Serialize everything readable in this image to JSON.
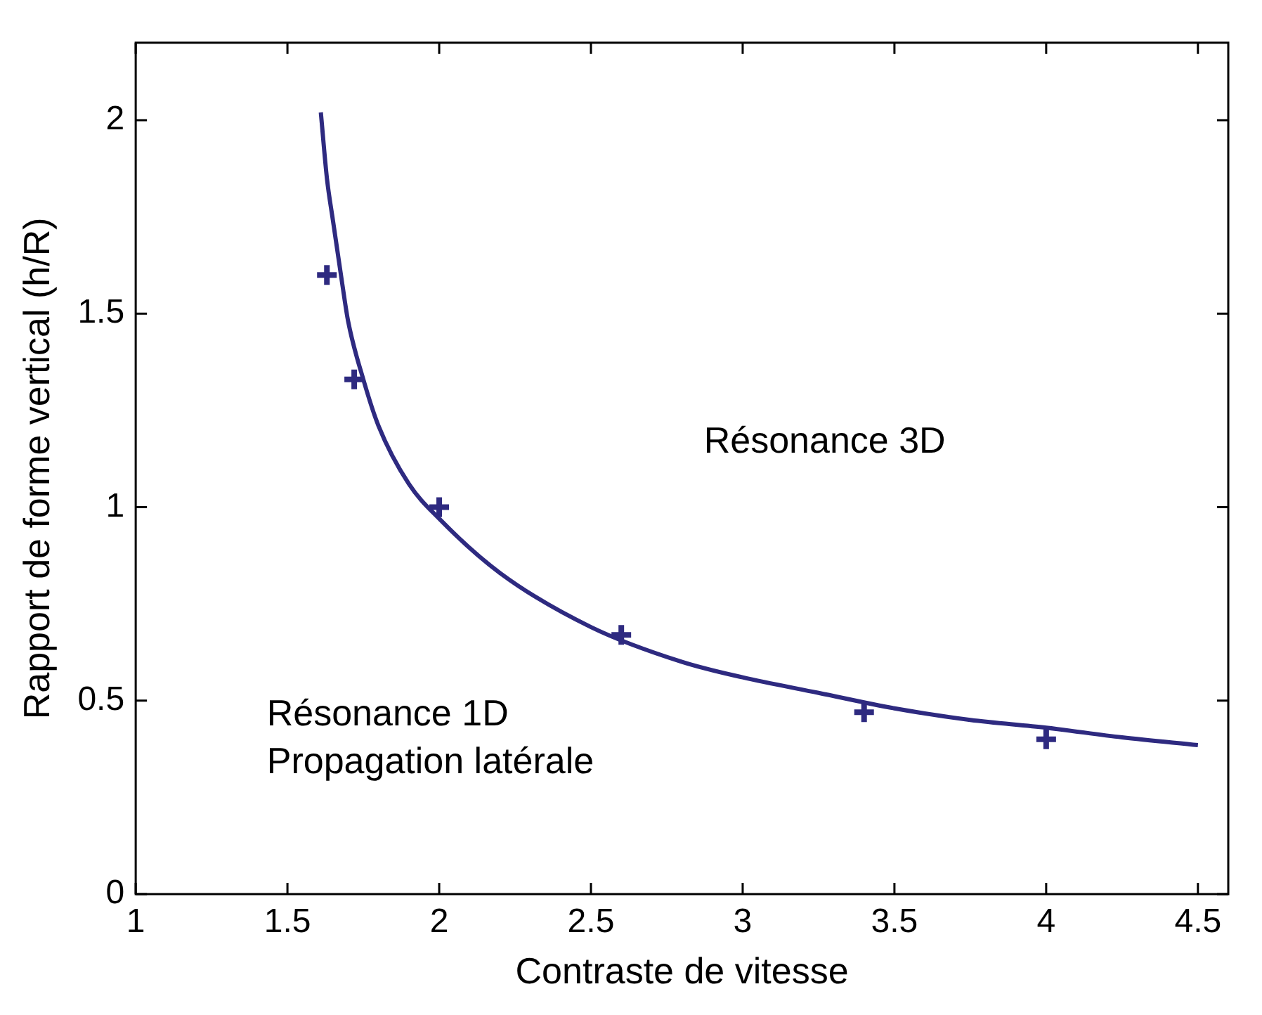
{
  "chart_data": {
    "type": "scatter",
    "xlabel": "Contraste de vitesse",
    "ylabel": "Rapport de forme vertical (h/R)",
    "xlim": [
      1,
      4.6
    ],
    "ylim": [
      0,
      2.2
    ],
    "xticks": [
      1,
      1.5,
      2,
      2.5,
      3,
      3.5,
      4,
      4.5
    ],
    "yticks": [
      0,
      0.5,
      1,
      1.5,
      2
    ],
    "grid": false,
    "legend": false,
    "series": [
      {
        "type": "line",
        "color": "#2e2a80",
        "marker": "none",
        "line_style": "solid",
        "x": [
          1.61,
          1.63,
          1.65,
          1.68,
          1.7,
          1.75,
          1.8,
          1.9,
          2,
          2.2,
          2.5,
          2.8,
          3,
          3.25,
          3.5,
          3.75,
          4,
          4.25,
          4.5
        ],
        "values": [
          2.02,
          1.85,
          1.74,
          1.58,
          1.48,
          1.33,
          1.21,
          1.06,
          0.97,
          0.83,
          0.69,
          0.6,
          0.56,
          0.52,
          0.48,
          0.45,
          0.43,
          0.405,
          0.385
        ]
      },
      {
        "color": "#2e2a80",
        "marker": "cross",
        "x": [
          1.63,
          1.72,
          2,
          2.6,
          3.4,
          4
        ],
        "values": [
          1.6,
          1.33,
          1,
          0.67,
          0.47,
          0.4
        ]
      }
    ],
    "annotations": [
      "Résonance 3D",
      "Résonance 1D\nPropagation latérale"
    ]
  }
}
